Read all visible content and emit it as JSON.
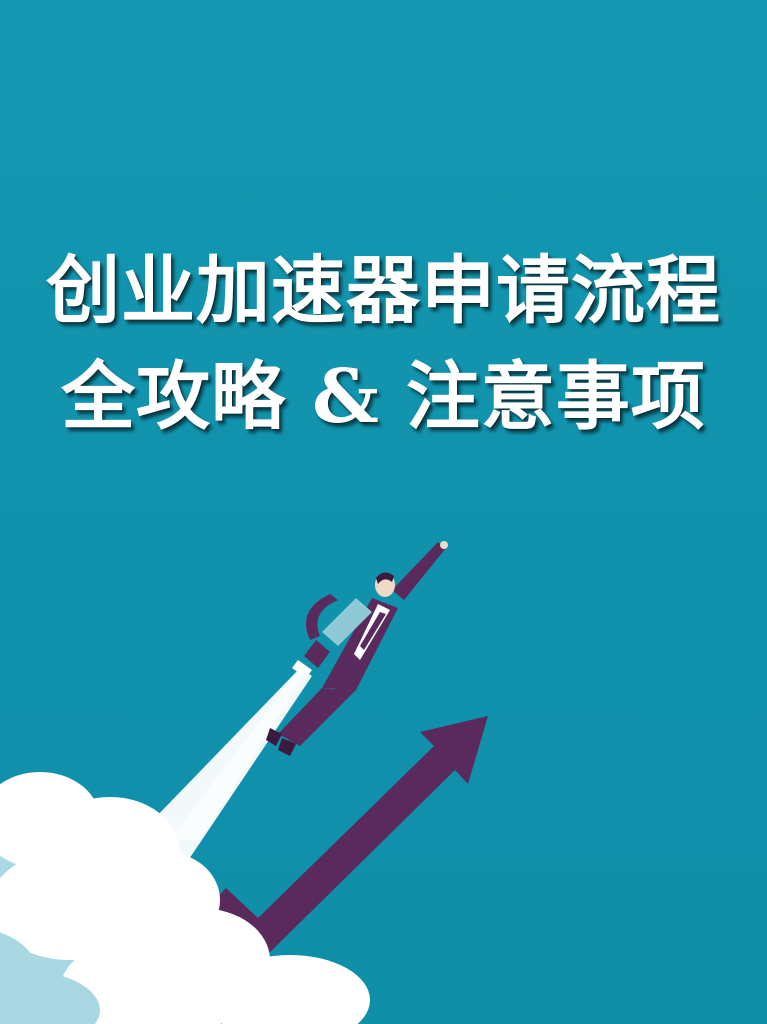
{
  "poster": {
    "title_line1": "创业加速器申请流程",
    "title_line2_a": "全攻略",
    "title_line2_amp": "&",
    "title_line2_b": "注意事项"
  },
  "colors": {
    "background": "#1193ad",
    "title_text": "#ffffff",
    "arrow": "#5a2a5c",
    "suit": "#5a2a5c",
    "cloud": "#ffffff",
    "cloud_shadow": "#a9d8e3",
    "jet_trail": "#ffffff",
    "jetpack": "#8fc9d6"
  },
  "illustration": {
    "subject": "businessman-flying-with-jetpack-icon",
    "arrow": "rising-arrow-icon",
    "clouds": "cloud-icon"
  }
}
